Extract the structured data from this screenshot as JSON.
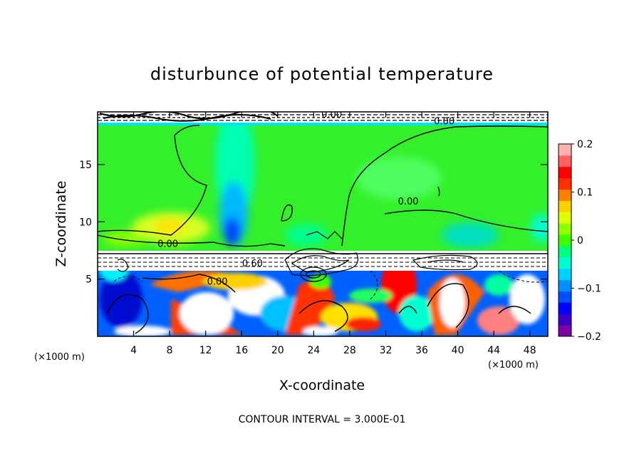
{
  "chart_data": {
    "type": "heatmap",
    "title": "disturbunce of potential temperature",
    "xlabel": "X-coordinate",
    "ylabel": "Z-coordinate",
    "x_unit": "(×1000 m)",
    "x_unit_right": "(×1000 m)",
    "xlim": [
      0,
      50
    ],
    "ylim": [
      0,
      19.6
    ],
    "x_ticks": [
      4,
      8,
      12,
      16,
      20,
      24,
      28,
      32,
      36,
      40,
      44,
      48
    ],
    "y_ticks": [
      5,
      10,
      15
    ],
    "colorbar": {
      "range": [
        -0.2,
        0.2
      ],
      "ticks": [
        {
          "value": 0.2,
          "label": "0.2"
        },
        {
          "value": 0.1,
          "label": "0.1"
        },
        {
          "value": 0,
          "label": "0"
        },
        {
          "value": -0.1,
          "label": "−0.1"
        },
        {
          "value": -0.2,
          "label": "−0.2"
        }
      ],
      "colors": [
        "#7b00a8",
        "#3a00c8",
        "#0000ff",
        "#0050ff",
        "#0090ff",
        "#00d0ff",
        "#00ffd0",
        "#00ff80",
        "#40ff00",
        "#90ff00",
        "#e0ff00",
        "#ffd000",
        "#ff8000",
        "#ff3000",
        "#ff0000",
        "#ff6060",
        "#ffb0b0"
      ]
    },
    "contour_labels": [
      {
        "text": "0.00",
        "x": 7.8,
        "y": 7.8
      },
      {
        "text": "0.00",
        "x": 13.3,
        "y": 4.5
      },
      {
        "text": "0.60",
        "x": 17.2,
        "y": 6.1
      },
      {
        "text": "0.00",
        "x": 34.5,
        "y": 11.5
      },
      {
        "text": "0.00",
        "x": 38.5,
        "y": 18.5
      },
      {
        "text": "0.00",
        "x": 26.0,
        "y": 19.1
      }
    ],
    "footer": "CONTOUR INTERVAL = 3.000E-01"
  }
}
